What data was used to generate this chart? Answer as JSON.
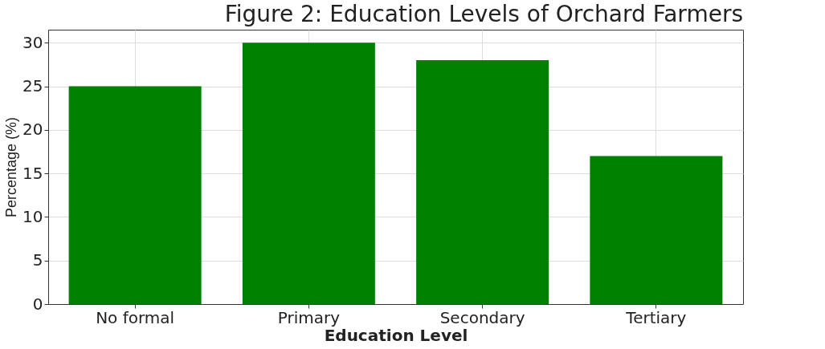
{
  "chart_data": {
    "type": "bar",
    "title": "Figure 2: Education Levels of Orchard Farmers",
    "xlabel": "Education Level",
    "ylabel": "Percentage (%)",
    "categories": [
      "No formal",
      "Primary",
      "Secondary",
      "Tertiary"
    ],
    "values": [
      25,
      30,
      28,
      17
    ],
    "color": "#008000",
    "ylim": [
      0,
      31.5
    ],
    "yticks": [
      0,
      5,
      10,
      15,
      20,
      25,
      30
    ],
    "grid": true
  }
}
